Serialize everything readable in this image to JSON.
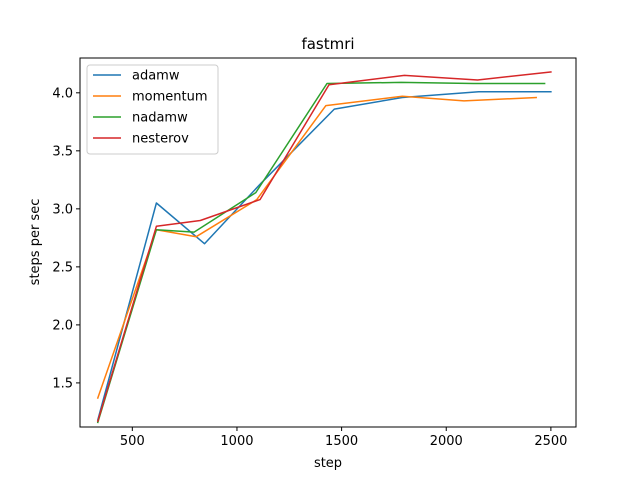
{
  "chart_data": {
    "type": "line",
    "title": "fastmri",
    "xlabel": "step",
    "ylabel": "steps per sec",
    "xlim": [
      250,
      2620
    ],
    "ylim": [
      1.12,
      4.3
    ],
    "xticks": [
      500,
      1000,
      1500,
      2000,
      2500
    ],
    "yticks": [
      1.5,
      2.0,
      2.5,
      3.0,
      3.5,
      4.0
    ],
    "xtick_labels": [
      "500",
      "1000",
      "1500",
      "2000",
      "2500"
    ],
    "ytick_labels": [
      "1.5",
      "2.0",
      "2.5",
      "3.0",
      "3.5",
      "4.0"
    ],
    "grid": false,
    "legend_position": "upper-left",
    "series": [
      {
        "name": "adamw",
        "color": "#1f77b4",
        "x": [
          335,
          615,
          845,
          1115,
          1465,
          1790,
          2155,
          2500
        ],
        "y": [
          1.18,
          3.05,
          2.7,
          3.22,
          3.86,
          3.96,
          4.01,
          4.01
        ]
      },
      {
        "name": "momentum",
        "color": "#ff7f0e",
        "x": [
          335,
          615,
          805,
          1095,
          1425,
          1790,
          2085,
          2430
        ],
        "y": [
          1.37,
          2.82,
          2.76,
          3.08,
          3.89,
          3.97,
          3.93,
          3.96
        ]
      },
      {
        "name": "nadamw",
        "color": "#2ca02c",
        "x": [
          335,
          615,
          795,
          1090,
          1430,
          1785,
          2130,
          2470
        ],
        "y": [
          1.16,
          2.82,
          2.8,
          3.14,
          4.08,
          4.09,
          4.08,
          4.08
        ]
      },
      {
        "name": "nesterov",
        "color": "#d62728",
        "x": [
          335,
          615,
          825,
          1110,
          1440,
          1800,
          2150,
          2500
        ],
        "y": [
          1.17,
          2.85,
          2.9,
          3.08,
          4.07,
          4.15,
          4.11,
          4.18
        ]
      }
    ]
  }
}
